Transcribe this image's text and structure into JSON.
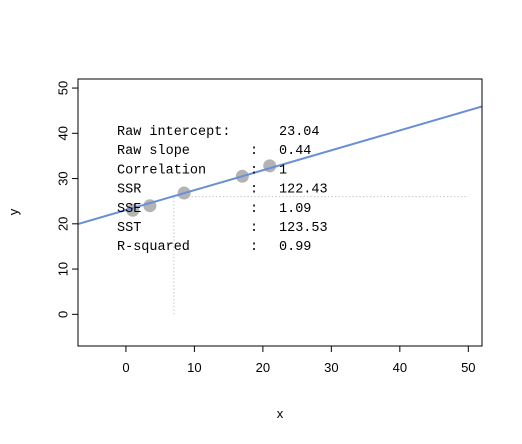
{
  "chart_data": {
    "type": "scatter",
    "xlabel": "x",
    "ylabel": "y",
    "xlim": [
      -7,
      52
    ],
    "ylim": [
      -7,
      52
    ],
    "x_ticks": [
      0,
      10,
      20,
      30,
      40,
      50
    ],
    "y_ticks": [
      0,
      10,
      20,
      30,
      40,
      50
    ],
    "points": [
      {
        "x": 1,
        "y": 23
      },
      {
        "x": 3.5,
        "y": 24
      },
      {
        "x": 8.5,
        "y": 26.8
      },
      {
        "x": 17,
        "y": 30.5
      },
      {
        "x": 21,
        "y": 32.8
      }
    ],
    "regression": {
      "intercept": 23.04,
      "slope": 0.44
    },
    "guides": {
      "x": 7,
      "y": 26
    },
    "stats": [
      {
        "label": "Raw intercept:",
        "sep": "",
        "value": "23.04"
      },
      {
        "label": "Raw slope",
        "sep": ":",
        "value": "0.44"
      },
      {
        "label": "Correlation",
        "sep": ":",
        "value": "1"
      },
      {
        "label": "SSR",
        "sep": ":",
        "value": "122.43"
      },
      {
        "label": "SSE",
        "sep": ":",
        "value": "1.09"
      },
      {
        "label": "SST",
        "sep": ":",
        "value": "123.53"
      },
      {
        "label": "R-squared",
        "sep": ":",
        "value": "0.99"
      }
    ],
    "colors": {
      "line": "#6a8fd8",
      "points": "#b3b3b3",
      "guides": "#c8c8c8"
    }
  }
}
